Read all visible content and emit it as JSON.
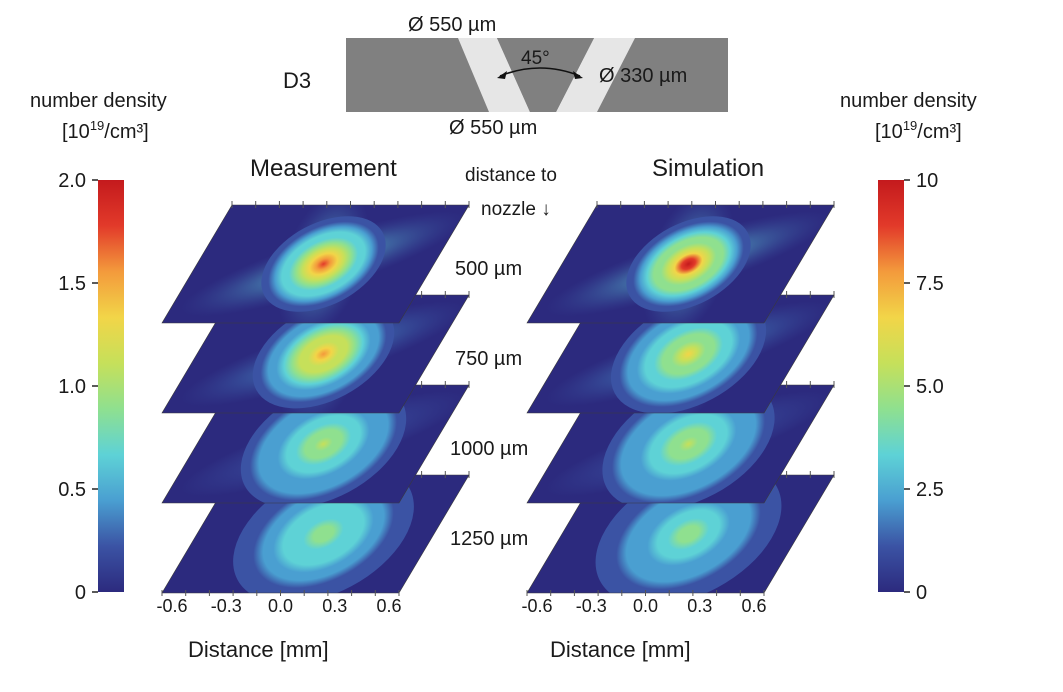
{
  "nozzle": {
    "label": "D3",
    "top_diameter": "Ø 550 µm",
    "bottom_diameter": "Ø 550 µm",
    "throat_diameter": "Ø 330 µm",
    "angle": "45°",
    "fill_color": "#808080",
    "channel_color": "#e6e6e6"
  },
  "left_colorbar": {
    "title_line1": "number density",
    "title_line2_base": "[10",
    "title_line2_sup": "19",
    "title_line2_rest": "/cm³]",
    "ticks": [
      "0",
      "0.5",
      "1.0",
      "1.5",
      "2.0"
    ],
    "range": [
      0,
      2.0
    ]
  },
  "right_colorbar": {
    "title_line1": "number density",
    "title_line2_base": "[10",
    "title_line2_sup": "19",
    "title_line2_rest": "/cm³]",
    "ticks": [
      "0",
      "2.5",
      "5.0",
      "7.5",
      "10"
    ],
    "range": [
      0,
      10
    ]
  },
  "center_header": {
    "line1": "distance to",
    "line2": "nozzle ↓"
  },
  "colormap": [
    "#2c2a7e",
    "#3b53a4",
    "#4a9fd1",
    "#5ed2d6",
    "#8fe08f",
    "#c6e05a",
    "#f2d548",
    "#f39a3c",
    "#e23a2a",
    "#c41a1d"
  ],
  "chart_data": [
    {
      "type": "heatmap",
      "title": "Measurement",
      "xlabel": "Distance [mm]",
      "x_ticks": [
        "-0.6",
        "-0.3",
        "0.0",
        "0.3",
        "0.6"
      ],
      "layers": [
        {
          "distance": "500 µm",
          "peak": 0.93,
          "spread": 0.62,
          "cross": 0.55
        },
        {
          "distance": "750 µm",
          "peak": 0.8,
          "spread": 0.72,
          "cross": 0.35
        },
        {
          "distance": "1000 µm",
          "peak": 0.55,
          "spread": 0.86,
          "cross": 0.1
        },
        {
          "distance": "1250 µm",
          "peak": 0.48,
          "spread": 0.95,
          "cross": 0.0
        }
      ]
    },
    {
      "type": "heatmap",
      "title": "Simulation",
      "xlabel": "Distance [mm]",
      "x_ticks": [
        "-0.6",
        "-0.3",
        "0.0",
        "0.3",
        "0.6"
      ],
      "layers": [
        {
          "distance": "500 µm",
          "peak": 0.97,
          "spread": 0.62,
          "cross": 0.55
        },
        {
          "distance": "750 µm",
          "peak": 0.62,
          "spread": 0.8,
          "cross": 0.25
        },
        {
          "distance": "1000 µm",
          "peak": 0.52,
          "spread": 0.9,
          "cross": 0.05
        },
        {
          "distance": "1250 µm",
          "peak": 0.46,
          "spread": 0.98,
          "cross": 0.0
        }
      ]
    }
  ]
}
